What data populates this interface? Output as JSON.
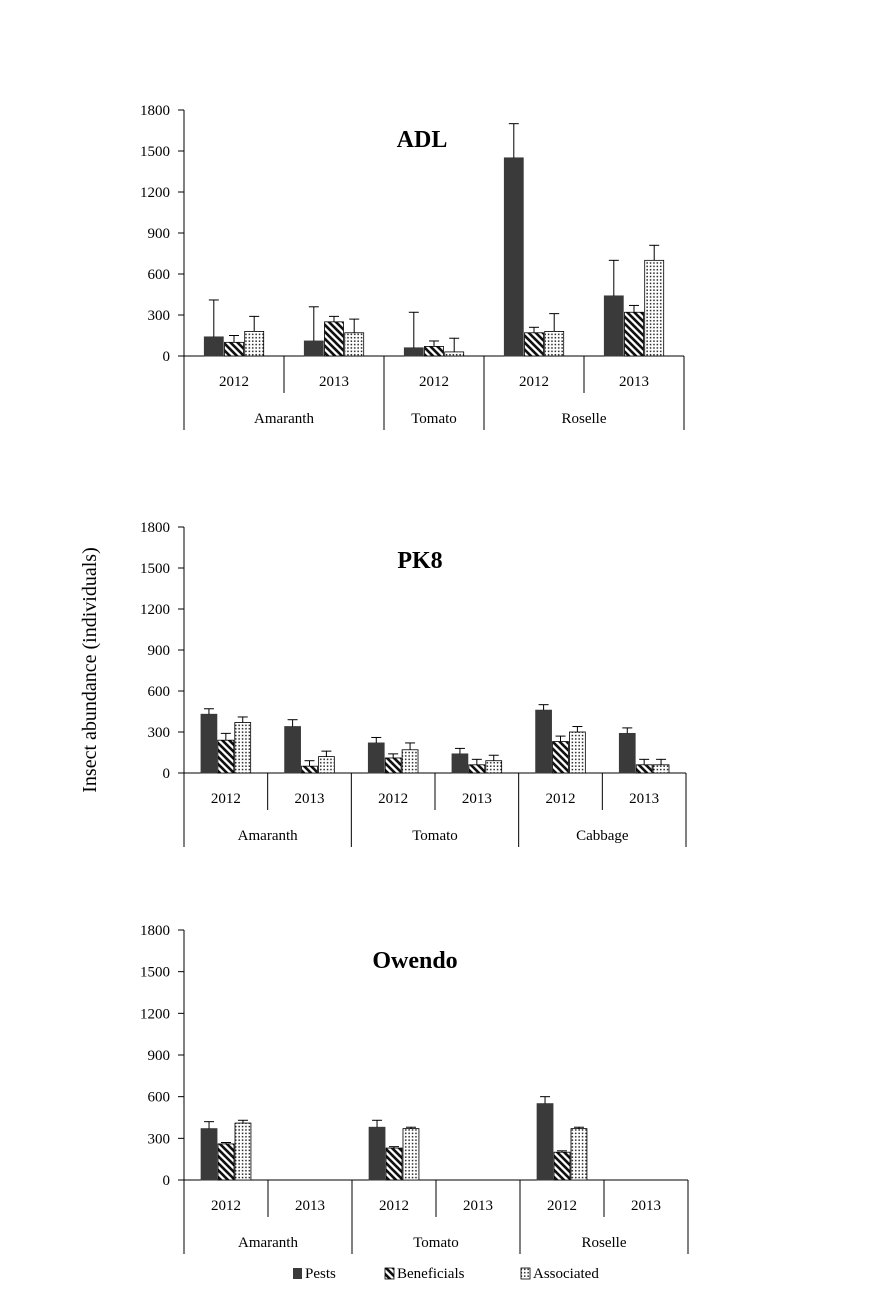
{
  "figure": {
    "ylabel": "Insect abundance (individuals)",
    "legend": {
      "placement": "bottom-center",
      "items": [
        {
          "label": "Pests",
          "pattern": "solid"
        },
        {
          "label": "Beneficials",
          "pattern": "hatch"
        },
        {
          "label": "Associated",
          "pattern": "dots"
        }
      ]
    },
    "colors": {
      "bar_dark": "#3a3a3a",
      "axis": "#000000",
      "background": "#ffffff"
    }
  },
  "chart_data": [
    {
      "type": "bar",
      "title": "ADL",
      "ylim": [
        0,
        1800
      ],
      "yticks": [
        0,
        300,
        600,
        900,
        1200,
        1500,
        1800
      ],
      "grid": false,
      "groups": [
        {
          "crop": "Amaranth",
          "years": [
            "2012",
            "2013"
          ]
        },
        {
          "crop": "Tomato",
          "years": [
            "2012"
          ]
        },
        {
          "crop": "Roselle",
          "years": [
            "2012",
            "2013"
          ]
        }
      ],
      "categories": [
        "Amaranth 2012",
        "Amaranth 2013",
        "Tomato 2012",
        "Roselle 2012",
        "Roselle 2013"
      ],
      "series": [
        {
          "name": "Pests",
          "values": [
            140,
            110,
            60,
            1450,
            440
          ],
          "errors": [
            270,
            250,
            260,
            250,
            260
          ]
        },
        {
          "name": "Beneficials",
          "values": [
            100,
            250,
            70,
            170,
            320
          ],
          "errors": [
            50,
            40,
            40,
            40,
            50
          ]
        },
        {
          "name": "Associated",
          "values": [
            180,
            170,
            30,
            180,
            700
          ],
          "errors": [
            110,
            100,
            100,
            130,
            110
          ]
        }
      ]
    },
    {
      "type": "bar",
      "title": "PK8",
      "ylim": [
        0,
        1800
      ],
      "yticks": [
        0,
        300,
        600,
        900,
        1200,
        1500,
        1800
      ],
      "grid": false,
      "groups": [
        {
          "crop": "Amaranth",
          "years": [
            "2012",
            "2013"
          ]
        },
        {
          "crop": "Tomato",
          "years": [
            "2012",
            "2013"
          ]
        },
        {
          "crop": "Cabbage",
          "years": [
            "2012",
            "2013"
          ]
        }
      ],
      "categories": [
        "Amaranth 2012",
        "Amaranth 2013",
        "Tomato 2012",
        "Tomato 2013",
        "Cabbage 2012",
        "Cabbage 2013"
      ],
      "series": [
        {
          "name": "Pests",
          "values": [
            430,
            340,
            220,
            140,
            460,
            290
          ],
          "errors": [
            40,
            50,
            40,
            40,
            40,
            40
          ]
        },
        {
          "name": "Beneficials",
          "values": [
            240,
            50,
            110,
            60,
            230,
            60
          ],
          "errors": [
            50,
            40,
            30,
            40,
            40,
            40
          ]
        },
        {
          "name": "Associated",
          "values": [
            370,
            120,
            170,
            90,
            300,
            60
          ],
          "errors": [
            40,
            40,
            50,
            40,
            40,
            40
          ]
        }
      ]
    },
    {
      "type": "bar",
      "title": "Owendo",
      "ylim": [
        0,
        1800
      ],
      "yticks": [
        0,
        300,
        600,
        900,
        1200,
        1500,
        1800
      ],
      "grid": false,
      "groups": [
        {
          "crop": "Amaranth",
          "years": [
            "2012",
            "2013"
          ]
        },
        {
          "crop": "Tomato",
          "years": [
            "2012",
            "2013"
          ]
        },
        {
          "crop": "Roselle",
          "years": [
            "2012",
            "2013"
          ]
        }
      ],
      "categories": [
        "Amaranth 2012",
        "Amaranth 2013",
        "Tomato 2012",
        "Tomato 2013",
        "Roselle 2012",
        "Roselle 2013"
      ],
      "series": [
        {
          "name": "Pests",
          "values": [
            370,
            null,
            380,
            null,
            550,
            null
          ],
          "errors": [
            50,
            null,
            50,
            null,
            50,
            null
          ]
        },
        {
          "name": "Beneficials",
          "values": [
            260,
            null,
            230,
            null,
            200,
            null
          ],
          "errors": [
            10,
            null,
            10,
            null,
            10,
            null
          ]
        },
        {
          "name": "Associated",
          "values": [
            410,
            null,
            370,
            null,
            370,
            null
          ],
          "errors": [
            20,
            null,
            10,
            null,
            10,
            null
          ]
        }
      ]
    }
  ]
}
